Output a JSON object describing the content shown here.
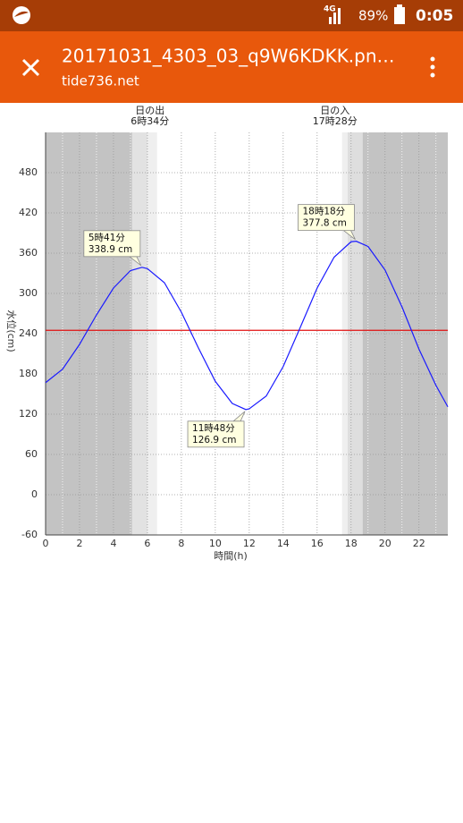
{
  "ui": {
    "status": {
      "network": "4G",
      "battery": "89%",
      "time": "0:05"
    },
    "appbar": {
      "title": "20171031_4303_03_q9W6KDKK.pn…",
      "subtitle": "tide736.net"
    }
  },
  "chart_data": {
    "type": "line",
    "xlabel": "時間(h)",
    "ylabel": "水位(cm)",
    "x": [
      0,
      1,
      2,
      3,
      4,
      5,
      5.68,
      6,
      7,
      8,
      9,
      10,
      11,
      11.8,
      12,
      13,
      14,
      15,
      16,
      17,
      18,
      18.3,
      19,
      20,
      21,
      22,
      23,
      23.7
    ],
    "values": [
      167,
      187,
      224,
      268,
      308,
      334,
      338.9,
      337,
      316,
      272,
      219,
      169,
      136,
      126.9,
      128,
      147,
      191,
      249,
      308,
      354,
      377,
      377.8,
      370,
      335,
      280,
      217,
      163,
      131
    ],
    "value_labels": [
      null,
      null,
      null,
      null,
      null,
      null,
      "338.9 cm",
      null,
      null,
      null,
      null,
      null,
      null,
      "126.9 cm",
      null,
      null,
      null,
      null,
      null,
      null,
      null,
      "377.8 cm",
      null,
      null,
      null,
      null,
      null,
      null
    ],
    "time_labels": [
      null,
      null,
      null,
      null,
      null,
      null,
      "5時41分",
      null,
      null,
      null,
      null,
      null,
      null,
      "11時48分",
      null,
      null,
      null,
      null,
      null,
      null,
      null,
      "18時18分",
      null,
      null,
      null,
      null,
      null,
      null
    ],
    "color": "#1a1aff",
    "xlim": [
      0,
      23.7
    ],
    "xticks": [
      0,
      2,
      4,
      6,
      8,
      10,
      12,
      14,
      16,
      18,
      20,
      22
    ],
    "x_minor_ticks": [
      1,
      3,
      5,
      7,
      9,
      11,
      13,
      15,
      17,
      19,
      21,
      23
    ],
    "ylim": [
      -60,
      540
    ],
    "yticks": [
      -60,
      0,
      60,
      120,
      180,
      240,
      300,
      360,
      420,
      480
    ],
    "grid": true,
    "reference_line": {
      "value": 245,
      "color": "#e01010"
    },
    "bands": [
      {
        "from": 0,
        "to": 5.1,
        "color": "#c3c3c3"
      },
      {
        "from": 5.1,
        "to": 6.0,
        "color": "#e2e2e2"
      },
      {
        "from": 6.0,
        "to": 6.57,
        "color": "#efefef"
      },
      {
        "from": 17.47,
        "to": 17.8,
        "color": "#efefef"
      },
      {
        "from": 17.8,
        "to": 18.68,
        "color": "#dedede"
      },
      {
        "from": 18.68,
        "to": 23.7,
        "color": "#c3c3c3"
      }
    ],
    "sun_events": [
      {
        "label": "日の出",
        "time": "6時34分",
        "x": 6.57
      },
      {
        "label": "日の入",
        "time": "17時28分",
        "x": 17.47
      }
    ]
  }
}
